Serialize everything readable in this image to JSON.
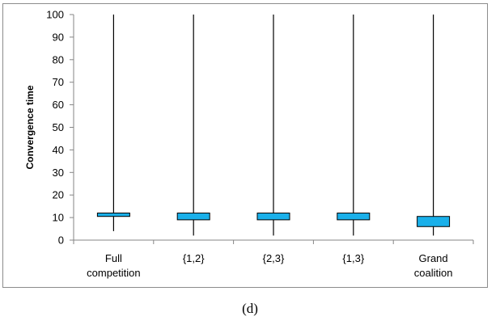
{
  "chart_data": {
    "type": "box",
    "title": "",
    "xlabel": "",
    "ylabel": "Convergence time",
    "ylim": [
      0,
      100
    ],
    "yticks": [
      0,
      10,
      20,
      30,
      40,
      50,
      60,
      70,
      80,
      90,
      100
    ],
    "grid": false,
    "categories": [
      [
        "Full",
        "competition"
      ],
      [
        "{1,2}"
      ],
      [
        "{2,3}"
      ],
      [
        "{1,3}"
      ],
      [
        "Grand",
        "coalition"
      ]
    ],
    "boxes": [
      {
        "min": 4,
        "q1": 10.5,
        "q3": 12,
        "max": 100
      },
      {
        "min": 2,
        "q1": 9,
        "q3": 12,
        "max": 100
      },
      {
        "min": 2,
        "q1": 9,
        "q3": 12,
        "max": 100
      },
      {
        "min": 2,
        "q1": 9,
        "q3": 12,
        "max": 100
      },
      {
        "min": 2,
        "q1": 6,
        "q3": 10.5,
        "max": 100
      }
    ],
    "box_color": "#1ab0ea",
    "box_edge_color": "#000000"
  },
  "caption": "(d)"
}
